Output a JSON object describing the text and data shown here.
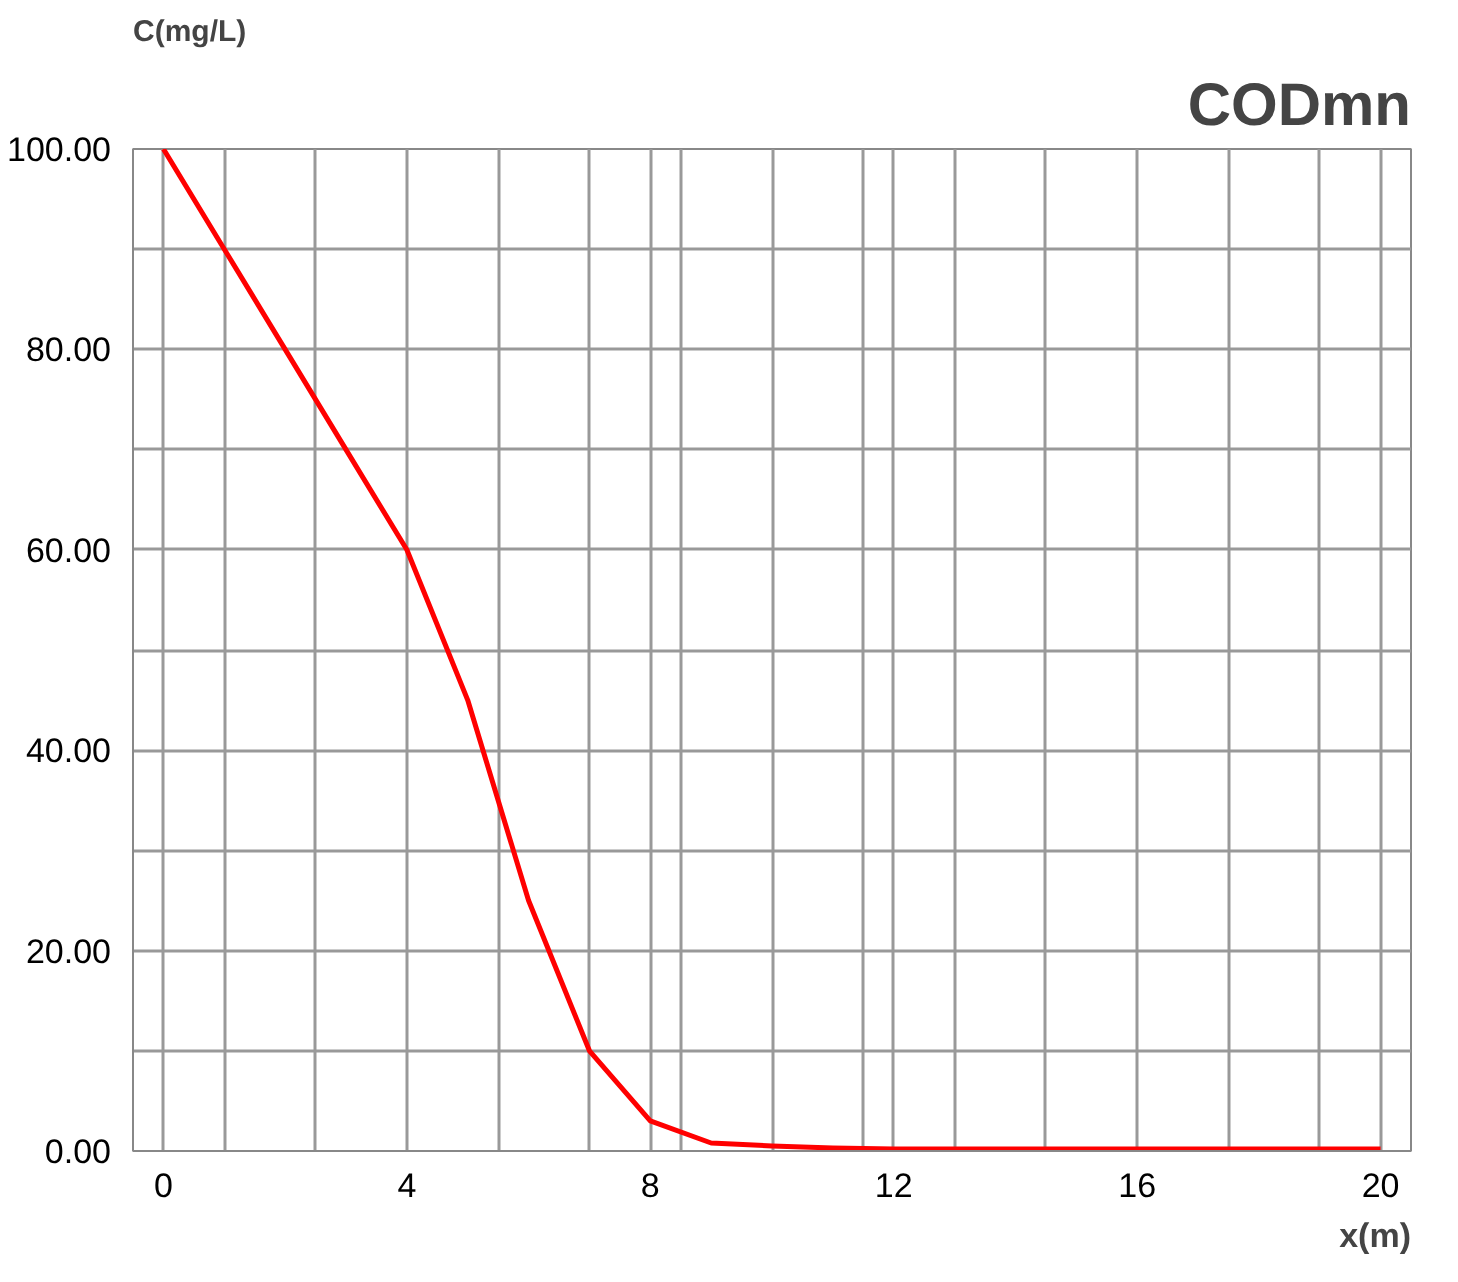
{
  "chart_data": {
    "type": "line",
    "title": "CODmn",
    "ylabel": "C(mg/L)",
    "xlabel": "x(m)",
    "x": [
      0,
      1,
      2,
      3,
      4,
      5,
      6,
      7,
      8,
      9,
      10,
      11,
      12,
      13,
      14,
      15,
      16,
      17,
      18,
      19,
      20
    ],
    "series": [
      {
        "color": "#ff0000",
        "values": [
          100,
          90,
          80,
          70,
          60,
          45,
          25,
          10,
          3,
          0.8,
          0.5,
          0.3,
          0.2,
          0.2,
          0.2,
          0.2,
          0.2,
          0.2,
          0.2,
          0.2,
          0.2
        ]
      }
    ],
    "xlim": [
      -0.5,
      20.5
    ],
    "ylim": [
      0,
      100
    ],
    "xticks": [
      {
        "value": -0.5,
        "label": null
      },
      0,
      {
        "value": 1,
        "label": null
      },
      {
        "value": 2.5,
        "label": null
      },
      4,
      {
        "value": 5.5,
        "label": null
      },
      {
        "value": 7,
        "label": null
      },
      8,
      {
        "value": 8.5,
        "label": null
      },
      {
        "value": 10,
        "label": null
      },
      {
        "value": 11.5,
        "label": null
      },
      12,
      {
        "value": 13,
        "label": null
      },
      {
        "value": 14.5,
        "label": null
      },
      16,
      {
        "value": 17.5,
        "label": null
      },
      {
        "value": 19,
        "label": null
      },
      20,
      {
        "value": 20.5,
        "label": null
      }
    ],
    "yticks": [
      {
        "value": 0,
        "label": "0.00"
      },
      {
        "value": 10,
        "label": null
      },
      {
        "value": 20,
        "label": "20.00"
      },
      {
        "value": 30,
        "label": null
      },
      {
        "value": 40,
        "label": "40.00"
      },
      {
        "value": 50,
        "label": null
      },
      {
        "value": 60,
        "label": "60.00"
      },
      {
        "value": 70,
        "label": null
      },
      {
        "value": 80,
        "label": "80.00"
      },
      {
        "value": 90,
        "label": null
      },
      {
        "value": 100,
        "label": "100.00"
      }
    ],
    "grid": true,
    "line_style": "solid"
  }
}
